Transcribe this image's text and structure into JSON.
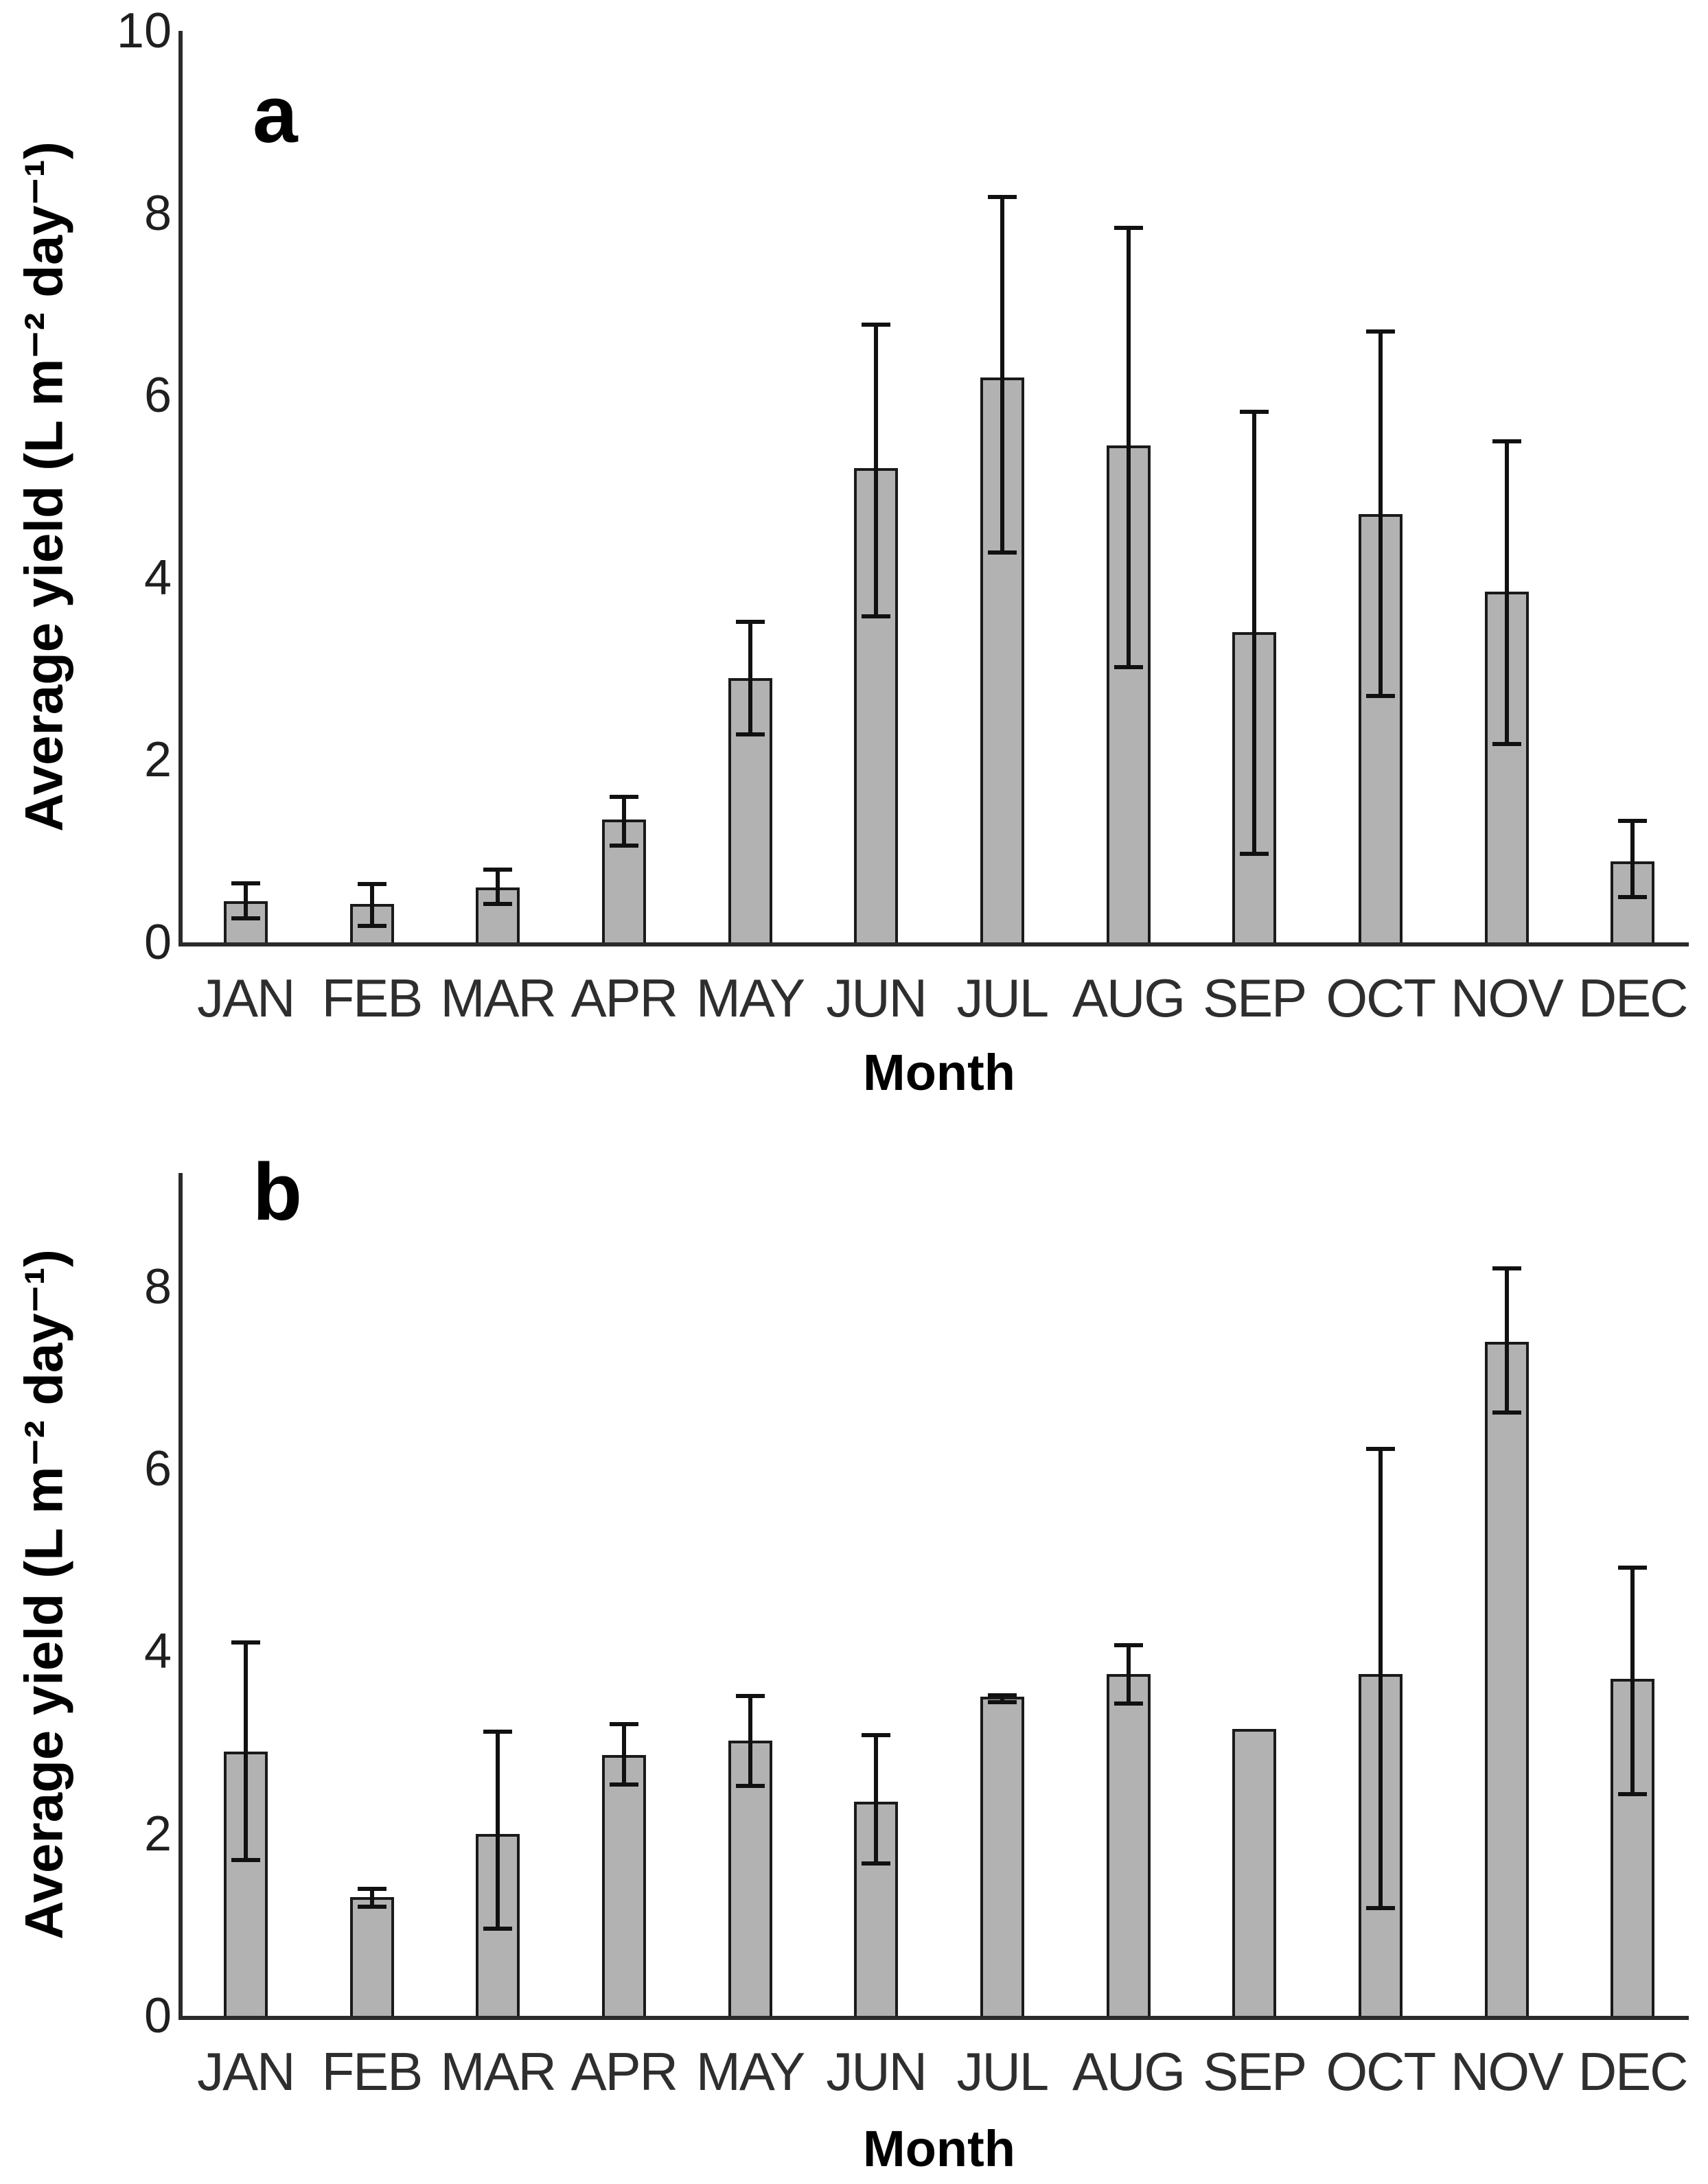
{
  "chart_data": [
    {
      "type": "bar",
      "panel_label": "a",
      "ylabel": "Average yield (L m⁻² day⁻¹)",
      "xlabel": "Month",
      "categories": [
        "JAN",
        "FEB",
        "MAR",
        "APR",
        "MAY",
        "JUN",
        "JUL",
        "AUG",
        "SEP",
        "OCT",
        "NOV",
        "DEC"
      ],
      "values": [
        0.45,
        0.42,
        0.6,
        1.35,
        2.9,
        5.2,
        6.2,
        5.45,
        3.4,
        4.7,
        3.85,
        0.89
      ],
      "err_low": [
        0.26,
        0.18,
        0.42,
        1.06,
        2.28,
        3.58,
        4.28,
        3.02,
        0.97,
        2.7,
        2.18,
        0.5
      ],
      "err_high": [
        0.65,
        0.64,
        0.8,
        1.6,
        3.52,
        6.78,
        8.18,
        7.84,
        5.82,
        6.7,
        5.5,
        1.33
      ],
      "ylim": [
        0,
        10
      ],
      "yticks": [
        0,
        2,
        4,
        6,
        8,
        10
      ],
      "grid": "off",
      "legend": "none",
      "bar_color": "#b2b2b2",
      "bar_border_color": "#1a1a1a",
      "error_color": "#111111"
    },
    {
      "type": "bar",
      "panel_label": "b",
      "ylabel": "Average yield (L m⁻² day⁻¹)",
      "xlabel": "Month",
      "categories": [
        "JAN",
        "FEB",
        "MAR",
        "APR",
        "MAY",
        "JUN",
        "JUL",
        "AUG",
        "SEP",
        "OCT",
        "NOV",
        "DEC"
      ],
      "values": [
        2.9,
        1.3,
        2.0,
        2.86,
        3.02,
        2.35,
        3.5,
        3.75,
        3.15,
        3.75,
        7.4,
        3.7
      ],
      "err_low": [
        1.71,
        1.2,
        0.96,
        2.54,
        2.52,
        1.67,
        3.44,
        3.43,
        3.15,
        1.18,
        6.62,
        2.43
      ],
      "err_high": [
        4.1,
        1.39,
        3.12,
        3.2,
        3.51,
        3.08,
        3.52,
        4.07,
        3.15,
        6.22,
        8.2,
        4.92
      ],
      "ylim": [
        0,
        9.25
      ],
      "yticks": [
        0,
        2,
        4,
        6,
        8
      ],
      "grid": "off",
      "legend": "none",
      "bar_color": "#b2b2b2",
      "bar_border_color": "#1a1a1a",
      "error_color": "#111111"
    }
  ]
}
